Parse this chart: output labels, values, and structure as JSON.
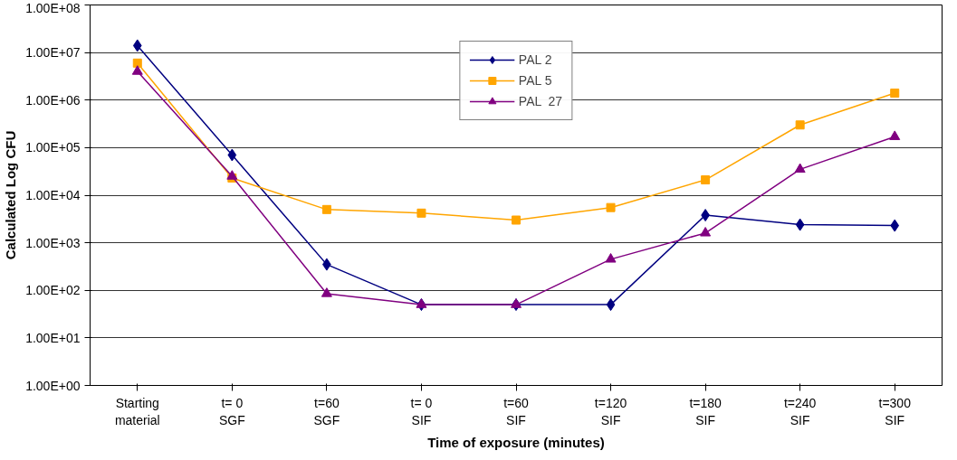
{
  "chart_data": {
    "type": "line",
    "xlabel": "Time of exposure (minutes)",
    "ylabel": "Calculated Log CFU",
    "categories": [
      "Starting\nmaterial",
      "t= 0\nSGF",
      "t=60\nSGF",
      "t= 0\nSIF",
      "t=60\nSIF",
      "t=120\nSIF",
      "t=180\nSIF",
      "t=240\nSIF",
      "t=300\nSIF"
    ],
    "series": [
      {
        "name": "PAL 2",
        "color": "#000080",
        "marker": "diamond",
        "values": [
          14000000,
          70000,
          350,
          50,
          50,
          50,
          3800,
          2400,
          2300
        ]
      },
      {
        "name": "PAL 5",
        "color": "#ffa500",
        "marker": "square",
        "values": [
          6000000,
          23000,
          5000,
          4200,
          3000,
          5500,
          21000,
          300000,
          1400000
        ]
      },
      {
        "name": "PAL  27",
        "color": "#800080",
        "marker": "triangle",
        "values": [
          4000000,
          25000,
          85,
          50,
          50,
          450,
          1600,
          35000,
          170000
        ]
      }
    ],
    "log": "y",
    "ylim": [
      1,
      100000000
    ],
    "yticks": [
      {
        "value": 1,
        "label": "1.00E+00"
      },
      {
        "value": 10,
        "label": "1.00E+01"
      },
      {
        "value": 100,
        "label": "1.00E+02"
      },
      {
        "value": 1000,
        "label": "1.00E+03"
      },
      {
        "value": 10000,
        "label": "1.00E+04"
      },
      {
        "value": 100000,
        "label": "1.00E+05"
      },
      {
        "value": 1000000,
        "label": "1.00E+06"
      },
      {
        "value": 10000000,
        "label": "1.00E+07"
      },
      {
        "value": 100000000,
        "label": "1.00E+08"
      }
    ],
    "grid": "y",
    "legend": "top",
    "line_style": "solid"
  }
}
